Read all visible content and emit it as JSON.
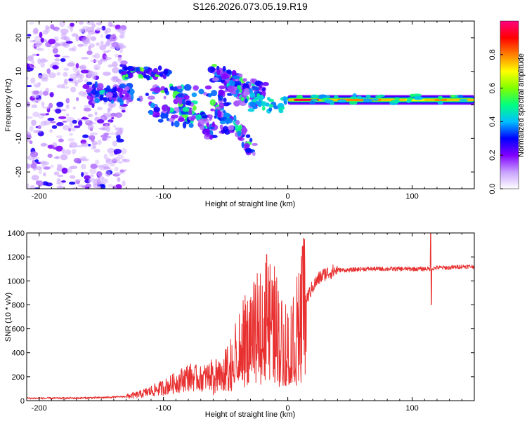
{
  "figure": {
    "title": "S126.2026.073.05.19.R19"
  },
  "chart_data": [
    {
      "type": "heatmap",
      "title": "",
      "xlabel": "Height of straight line (km)",
      "ylabel": "Frequency (Hz)",
      "xlim": [
        -210,
        150
      ],
      "ylim": [
        -25,
        25
      ],
      "x_ticks": [
        -200,
        -100,
        0,
        100
      ],
      "y_ticks": [
        -20,
        -10,
        0,
        10,
        20
      ],
      "colorbar": {
        "label": "Normalized spectral amplitude",
        "range": [
          0,
          1
        ],
        "ticks": [
          0.0,
          0.2,
          0.4,
          0.6,
          0.8
        ],
        "tick_labels": [
          "0.0",
          "0.2",
          "0.4",
          "0.6",
          "0.8"
        ],
        "colors": [
          "#ffffff",
          "#c8a0ff",
          "#8000ff",
          "#0000ff",
          "#00c0ff",
          "#00ff80",
          "#80ff00",
          "#ffff00",
          "#ff8000",
          "#ff0000",
          "#ff0080"
        ]
      },
      "features": [
        {
          "name": "scattered low-amplitude noise",
          "x_range": [
            -210,
            -130
          ],
          "freq_range": [
            -25,
            25
          ],
          "amplitude": 0.1
        },
        {
          "name": "upper branch",
          "x_range": [
            -135,
            -95
          ],
          "freq_range": [
            8,
            11
          ],
          "amplitude": 0.35
        },
        {
          "name": "converging branches",
          "x_range": [
            -130,
            -10
          ],
          "freq_range": [
            -15,
            12
          ],
          "amplitude": 0.35
        },
        {
          "name": "steady band",
          "x_range": [
            0,
            150
          ],
          "freq_range": [
            0,
            3
          ],
          "amplitude": 0.85
        }
      ]
    },
    {
      "type": "line",
      "title": "",
      "xlabel": "Height of straight line (km)",
      "ylabel": "SNR (10 * v/v)",
      "xlim": [
        -210,
        150
      ],
      "ylim": [
        0,
        1400
      ],
      "x_ticks": [
        -200,
        -100,
        0,
        100
      ],
      "y_ticks": [
        0,
        200,
        400,
        600,
        800,
        1000,
        1200,
        1400
      ],
      "color": "#e83030",
      "x": [
        -210,
        -180,
        -150,
        -130,
        -120,
        -110,
        -100,
        -90,
        -80,
        -70,
        -60,
        -50,
        -40,
        -35,
        -30,
        -25,
        -20,
        -15,
        -10,
        -5,
        0,
        5,
        10,
        15,
        20,
        25,
        30,
        40,
        50,
        60,
        70,
        80,
        90,
        100,
        110,
        115,
        120,
        130,
        140,
        150
      ],
      "values": [
        20,
        20,
        25,
        35,
        50,
        80,
        110,
        150,
        200,
        180,
        220,
        250,
        400,
        500,
        550,
        600,
        700,
        700,
        650,
        500,
        500,
        550,
        700,
        850,
        950,
        1020,
        1060,
        1090,
        1090,
        1100,
        1100,
        1100,
        1100,
        1100,
        1100,
        1100,
        1110,
        1110,
        1120,
        1120
      ],
      "spikes": [
        {
          "x": -17,
          "value": 1220
        },
        {
          "x": 12,
          "value": 1290
        },
        {
          "x": 115,
          "value": 1400
        },
        {
          "x": 115.5,
          "value": 800
        }
      ]
    }
  ]
}
